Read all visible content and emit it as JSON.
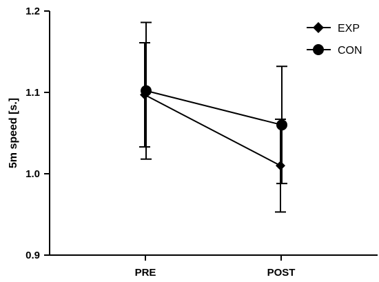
{
  "chart_data": {
    "type": "line",
    "categories": [
      "PRE",
      "POST"
    ],
    "ylabel": "5m speed [s.]",
    "xlabel": "",
    "ylim": [
      0.9,
      1.2
    ],
    "yticks": [
      "0.9",
      "1.0",
      "1.1",
      "1.2"
    ],
    "series": [
      {
        "name": "EXP",
        "marker": "diamond",
        "values": [
          1.097,
          1.01
        ],
        "error": [
          0.064,
          0.057
        ]
      },
      {
        "name": "CON",
        "marker": "circle",
        "values": [
          1.102,
          1.06
        ],
        "error": [
          0.084,
          0.072
        ]
      }
    ],
    "legend": "top-right",
    "grid": false,
    "color": "#000000"
  }
}
